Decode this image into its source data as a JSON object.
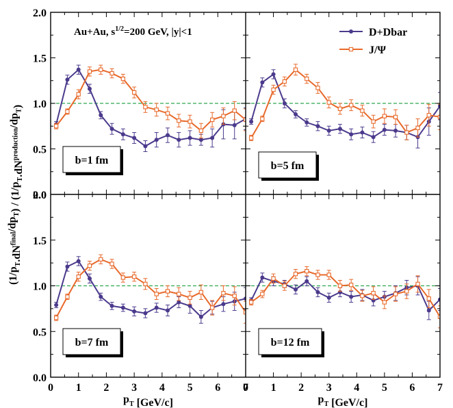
{
  "figure": {
    "annotation_parts": [
      "Au+Au, s",
      "1/2",
      "=200 GeV, |y|<1"
    ],
    "ylabel_parts": [
      {
        "t": "(1/p",
        "s": "n"
      },
      {
        "t": "T",
        "s": "sub"
      },
      {
        "t": ".dN",
        "s": "n"
      },
      {
        "t": "final",
        "s": "sup"
      },
      {
        "t": "/dp",
        "s": "n"
      },
      {
        "t": "T",
        "s": "sub"
      },
      {
        "t": ") / (1/p",
        "s": "n"
      },
      {
        "t": "T",
        "s": "sub"
      },
      {
        "t": ".dN",
        "s": "n"
      },
      {
        "t": "production",
        "s": "sup"
      },
      {
        "t": "/dp",
        "s": "n"
      },
      {
        "t": "T",
        "s": "sub"
      },
      {
        "t": ")",
        "s": "n"
      }
    ],
    "xlabel_parts": [
      {
        "t": "p",
        "s": "n"
      },
      {
        "t": "T",
        "s": "sub"
      },
      {
        "t": " [GeV/c]",
        "s": "n"
      }
    ],
    "colors": {
      "d": "#4b3a8c",
      "j": "#e8692a",
      "ref": "#2fa84f",
      "frame": "#000000"
    }
  },
  "chart_data": {
    "type": "line",
    "layout": "2x2 panels, shared axes",
    "xlim": [
      0,
      7
    ],
    "ylim": [
      0,
      2.0
    ],
    "xticks": [
      0,
      1,
      2,
      3,
      4,
      5,
      6,
      7
    ],
    "yticks": [
      0.0,
      0.5,
      1.0,
      1.5,
      2.0
    ],
    "reference_line": 1.0,
    "legend": {
      "position": "top-right",
      "entries": [
        {
          "key": "d",
          "label": "D+Dbar",
          "marker": "filled-circle"
        },
        {
          "key": "j",
          "label": "J/Ψ",
          "marker": "open-square"
        }
      ]
    },
    "x": [
      0.2,
      0.6,
      1.0,
      1.4,
      1.8,
      2.2,
      2.6,
      3.0,
      3.4,
      3.8,
      4.2,
      4.6,
      5.0,
      5.4,
      5.8,
      6.2,
      6.6,
      7.0
    ],
    "panels": [
      {
        "label": "b=1 fm",
        "series": [
          {
            "key": "d",
            "name": "D+Dbar",
            "y": [
              0.77,
              1.26,
              1.37,
              1.16,
              0.87,
              0.72,
              0.66,
              0.62,
              0.53,
              0.6,
              0.65,
              0.6,
              0.62,
              0.6,
              0.62,
              0.77,
              0.76,
              0.83
            ],
            "err": [
              0.03,
              0.05,
              0.05,
              0.05,
              0.04,
              0.06,
              0.06,
              0.06,
              0.06,
              0.08,
              0.08,
              0.08,
              0.08,
              0.06,
              0.1,
              0.16,
              0.15,
              0.12
            ]
          },
          {
            "key": "j",
            "name": "J/Ψ",
            "y": [
              0.75,
              0.91,
              1.1,
              1.35,
              1.37,
              1.33,
              1.27,
              1.12,
              0.96,
              0.93,
              0.89,
              0.81,
              0.8,
              0.7,
              0.82,
              0.86,
              0.92,
              0.82
            ],
            "err": [
              0.03,
              0.03,
              0.05,
              0.05,
              0.05,
              0.05,
              0.05,
              0.06,
              0.06,
              0.07,
              0.07,
              0.07,
              0.07,
              0.08,
              0.08,
              0.09,
              0.1,
              0.12
            ]
          }
        ]
      },
      {
        "label": "b=5 fm",
        "series": [
          {
            "key": "d",
            "name": "D+Dbar",
            "y": [
              0.8,
              1.23,
              1.32,
              1.0,
              0.88,
              0.79,
              0.75,
              0.7,
              0.72,
              0.66,
              0.68,
              0.63,
              0.71,
              0.7,
              0.68,
              0.63,
              0.8,
              0.97
            ],
            "err": [
              0.03,
              0.05,
              0.05,
              0.05,
              0.04,
              0.04,
              0.05,
              0.05,
              0.05,
              0.06,
              0.06,
              0.06,
              0.06,
              0.07,
              0.08,
              0.12,
              0.15,
              0.15
            ]
          },
          {
            "key": "j",
            "name": "J/Ψ",
            "y": [
              0.62,
              0.83,
              1.15,
              1.24,
              1.37,
              1.27,
              1.17,
              1.01,
              0.94,
              0.98,
              0.92,
              0.8,
              0.86,
              0.85,
              0.68,
              0.73,
              0.87,
              0.85
            ],
            "err": [
              0.03,
              0.03,
              0.05,
              0.05,
              0.06,
              0.05,
              0.06,
              0.06,
              0.06,
              0.06,
              0.06,
              0.07,
              0.08,
              0.08,
              0.08,
              0.1,
              0.12,
              0.14
            ]
          }
        ]
      },
      {
        "label": "b=7 fm",
        "series": [
          {
            "key": "d",
            "name": "D+Dbar",
            "y": [
              0.79,
              1.21,
              1.27,
              1.08,
              0.88,
              0.78,
              0.76,
              0.72,
              0.7,
              0.76,
              0.73,
              0.82,
              0.78,
              0.66,
              0.76,
              0.8,
              0.83,
              0.86
            ],
            "err": [
              0.03,
              0.05,
              0.05,
              0.05,
              0.04,
              0.04,
              0.04,
              0.05,
              0.05,
              0.05,
              0.06,
              0.06,
              0.08,
              0.07,
              0.07,
              0.08,
              0.1,
              0.12
            ]
          },
          {
            "key": "j",
            "name": "J/Ψ",
            "y": [
              0.65,
              0.88,
              1.1,
              1.22,
              1.29,
              1.24,
              1.09,
              1.1,
              1.02,
              0.91,
              0.94,
              0.91,
              0.87,
              0.93,
              0.76,
              0.92,
              0.89,
              0.71
            ],
            "err": [
              0.03,
              0.03,
              0.05,
              0.05,
              0.05,
              0.05,
              0.05,
              0.05,
              0.06,
              0.06,
              0.06,
              0.07,
              0.07,
              0.08,
              0.08,
              0.08,
              0.1,
              0.12
            ]
          }
        ]
      },
      {
        "label": "b=12 fm",
        "series": [
          {
            "key": "d",
            "name": "D+Dbar",
            "y": [
              0.84,
              1.09,
              1.05,
              1.02,
              0.96,
              1.05,
              0.93,
              0.87,
              0.93,
              0.88,
              0.9,
              0.84,
              0.88,
              0.92,
              0.98,
              1.0,
              0.73,
              0.85
            ],
            "err": [
              0.03,
              0.05,
              0.05,
              0.04,
              0.05,
              0.05,
              0.05,
              0.05,
              0.05,
              0.06,
              0.06,
              0.06,
              0.06,
              0.08,
              0.08,
              0.1,
              0.1,
              0.12
            ]
          },
          {
            "key": "j",
            "name": "J/Ψ",
            "y": [
              0.82,
              0.91,
              1.08,
              1.0,
              1.13,
              1.16,
              1.12,
              1.12,
              1.0,
              1.01,
              0.89,
              0.92,
              0.82,
              0.91,
              0.94,
              1.02,
              0.86,
              0.66
            ],
            "err": [
              0.03,
              0.04,
              0.05,
              0.05,
              0.05,
              0.05,
              0.05,
              0.05,
              0.06,
              0.06,
              0.06,
              0.07,
              0.07,
              0.08,
              0.08,
              0.09,
              0.1,
              0.12
            ]
          }
        ]
      }
    ]
  }
}
